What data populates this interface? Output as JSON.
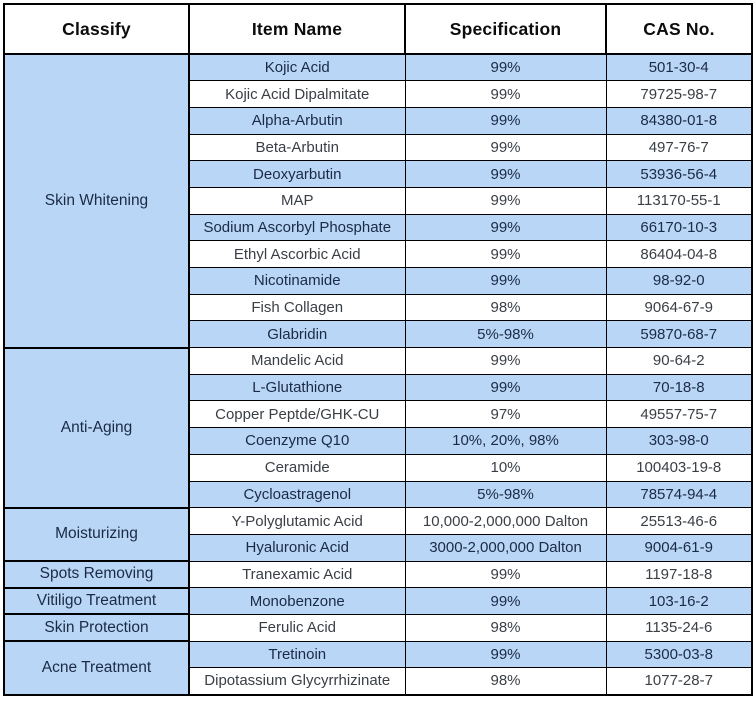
{
  "table": {
    "headers": [
      "Classify",
      "Item Name",
      "Specification",
      "CAS No."
    ],
    "groups": [
      {
        "classify": "Skin Whitening",
        "items": [
          {
            "name": "Kojic Acid",
            "spec": "99%",
            "cas": "501-30-4"
          },
          {
            "name": "Kojic Acid Dipalmitate",
            "spec": "99%",
            "cas": "79725-98-7"
          },
          {
            "name": "Alpha-Arbutin",
            "spec": "99%",
            "cas": "84380-01-8"
          },
          {
            "name": "Beta-Arbutin",
            "spec": "99%",
            "cas": "497-76-7"
          },
          {
            "name": "Deoxyarbutin",
            "spec": "99%",
            "cas": "53936-56-4"
          },
          {
            "name": "MAP",
            "spec": "99%",
            "cas": "113170-55-1"
          },
          {
            "name": "Sodium Ascorbyl Phosphate",
            "spec": "99%",
            "cas": "66170-10-3"
          },
          {
            "name": "Ethyl Ascorbic Acid",
            "spec": "99%",
            "cas": "86404-04-8"
          },
          {
            "name": "Nicotinamide",
            "spec": "99%",
            "cas": "98-92-0"
          },
          {
            "name": "Fish Collagen",
            "spec": "98%",
            "cas": "9064-67-9"
          },
          {
            "name": "Glabridin",
            "spec": "5%-98%",
            "cas": "59870-68-7"
          }
        ]
      },
      {
        "classify": "Anti-Aging",
        "items": [
          {
            "name": "Mandelic Acid",
            "spec": "99%",
            "cas": "90-64-2"
          },
          {
            "name": "L-Glutathione",
            "spec": "99%",
            "cas": "70-18-8"
          },
          {
            "name": "Copper Peptde/GHK-CU",
            "spec": "97%",
            "cas": "49557-75-7"
          },
          {
            "name": "Coenzyme Q10",
            "spec": "10%, 20%, 98%",
            "cas": "303-98-0"
          },
          {
            "name": "Ceramide",
            "spec": "10%",
            "cas": "100403-19-8"
          },
          {
            "name": "Cycloastragenol",
            "spec": "5%-98%",
            "cas": "78574-94-4"
          }
        ]
      },
      {
        "classify": "Moisturizing",
        "items": [
          {
            "name": "Y-Polyglutamic Acid",
            "spec": "10,000-2,000,000 Dalton",
            "cas": "25513-46-6"
          },
          {
            "name": "Hyaluronic Acid",
            "spec": "3000-2,000,000 Dalton",
            "cas": "9004-61-9"
          }
        ]
      },
      {
        "classify": "Spots Removing",
        "items": [
          {
            "name": "Tranexamic Acid",
            "spec": "99%",
            "cas": "1197-18-8"
          }
        ]
      },
      {
        "classify": "Vitiligo Treatment",
        "items": [
          {
            "name": "Monobenzone",
            "spec": "99%",
            "cas": "103-16-2"
          }
        ]
      },
      {
        "classify": "Skin Protection",
        "items": [
          {
            "name": "Ferulic Acid",
            "spec": "98%",
            "cas": "1135-24-6"
          }
        ]
      },
      {
        "classify": "Acne Treatment",
        "items": [
          {
            "name": "Tretinoin",
            "spec": "99%",
            "cas": "5300-03-8"
          },
          {
            "name": "Dipotassium Glycyrrhizinate",
            "spec": "98%",
            "cas": "1077-28-7"
          }
        ]
      }
    ],
    "colors": {
      "row_blue": "#b9d6f6",
      "row_white": "#ffffff",
      "border": "#000000",
      "text_navy": "#1b2a45",
      "text_dark": "#3a3f45"
    }
  }
}
